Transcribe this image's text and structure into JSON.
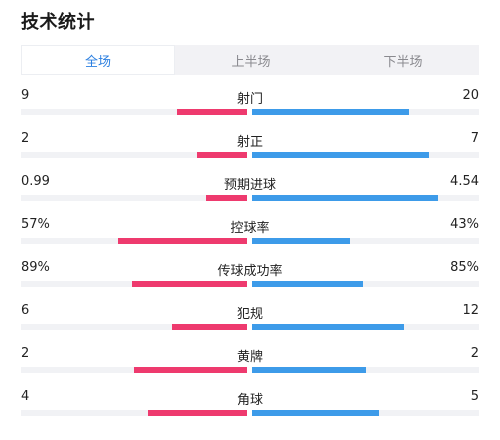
{
  "header": {
    "title": "技术统计"
  },
  "tabs": [
    {
      "label": "全场",
      "active": true
    },
    {
      "label": "上半场",
      "active": false
    },
    {
      "label": "下半场",
      "active": false
    }
  ],
  "colors": {
    "home": "#ee3a6e",
    "away": "#3d9be9",
    "active_tab": "#2b7fe0"
  },
  "stats": [
    {
      "label": "射门",
      "home": "9",
      "away": "20",
      "home_fraction": 0.31,
      "away_fraction": 0.69
    },
    {
      "label": "射正",
      "home": "2",
      "away": "7",
      "home_fraction": 0.22,
      "away_fraction": 0.78
    },
    {
      "label": "预期进球",
      "home": "0.99",
      "away": "4.54",
      "home_fraction": 0.18,
      "away_fraction": 0.82
    },
    {
      "label": "控球率",
      "home": "57%",
      "away": "43%",
      "home_fraction": 0.57,
      "away_fraction": 0.43
    },
    {
      "label": "传球成功率",
      "home": "89%",
      "away": "85%",
      "home_fraction": 0.51,
      "away_fraction": 0.49
    },
    {
      "label": "犯规",
      "home": "6",
      "away": "12",
      "home_fraction": 0.33,
      "away_fraction": 0.67
    },
    {
      "label": "黄牌",
      "home": "2",
      "away": "2",
      "home_fraction": 0.5,
      "away_fraction": 0.5
    },
    {
      "label": "角球",
      "home": "4",
      "away": "5",
      "home_fraction": 0.44,
      "away_fraction": 0.56
    }
  ]
}
